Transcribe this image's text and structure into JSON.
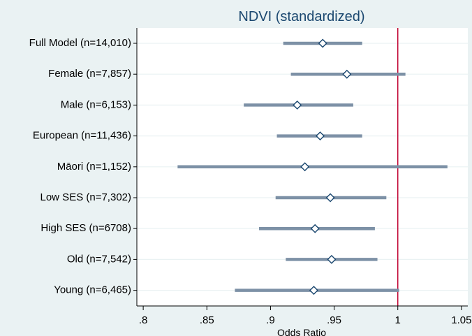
{
  "chart_data": {
    "type": "forest",
    "title": "NDVI (standardized)",
    "xlabel": "Odds Ratio",
    "xlim": [
      0.795,
      1.055
    ],
    "xticks": [
      0.8,
      0.85,
      0.9,
      0.95,
      1,
      1.05
    ],
    "xtick_labels": [
      ".8",
      ".85",
      ".9",
      ".95",
      "1",
      "1.05"
    ],
    "reference_line": 1,
    "grid": "horizontal",
    "colors": {
      "background": "#eaf2f3",
      "plot_bg": "#ffffff",
      "bar": "#7d91a6",
      "marker_fill": "#ffffff",
      "marker_stroke": "#1a476f",
      "reference": "#c10534",
      "title": "#1a476f"
    },
    "rows": [
      {
        "label": "Full Model (n=14,010)",
        "estimate": 0.941,
        "lower": 0.91,
        "upper": 0.972
      },
      {
        "label": "Female (n=7,857)",
        "estimate": 0.96,
        "lower": 0.916,
        "upper": 1.006
      },
      {
        "label": "Male (n=6,153)",
        "estimate": 0.921,
        "lower": 0.879,
        "upper": 0.965
      },
      {
        "label": "European (n=11,436)",
        "estimate": 0.939,
        "lower": 0.905,
        "upper": 0.972
      },
      {
        "label": "Māori (n=1,152)",
        "estimate": 0.927,
        "lower": 0.827,
        "upper": 1.039
      },
      {
        "label": "Low SES (n=7,302)",
        "estimate": 0.947,
        "lower": 0.904,
        "upper": 0.991
      },
      {
        "label": "High SES (n=6708)",
        "estimate": 0.935,
        "lower": 0.891,
        "upper": 0.982
      },
      {
        "label": "Old (n=7,542)",
        "estimate": 0.948,
        "lower": 0.912,
        "upper": 0.984
      },
      {
        "label": "Young (n=6,465)",
        "estimate": 0.934,
        "lower": 0.872,
        "upper": 1.001
      }
    ]
  }
}
